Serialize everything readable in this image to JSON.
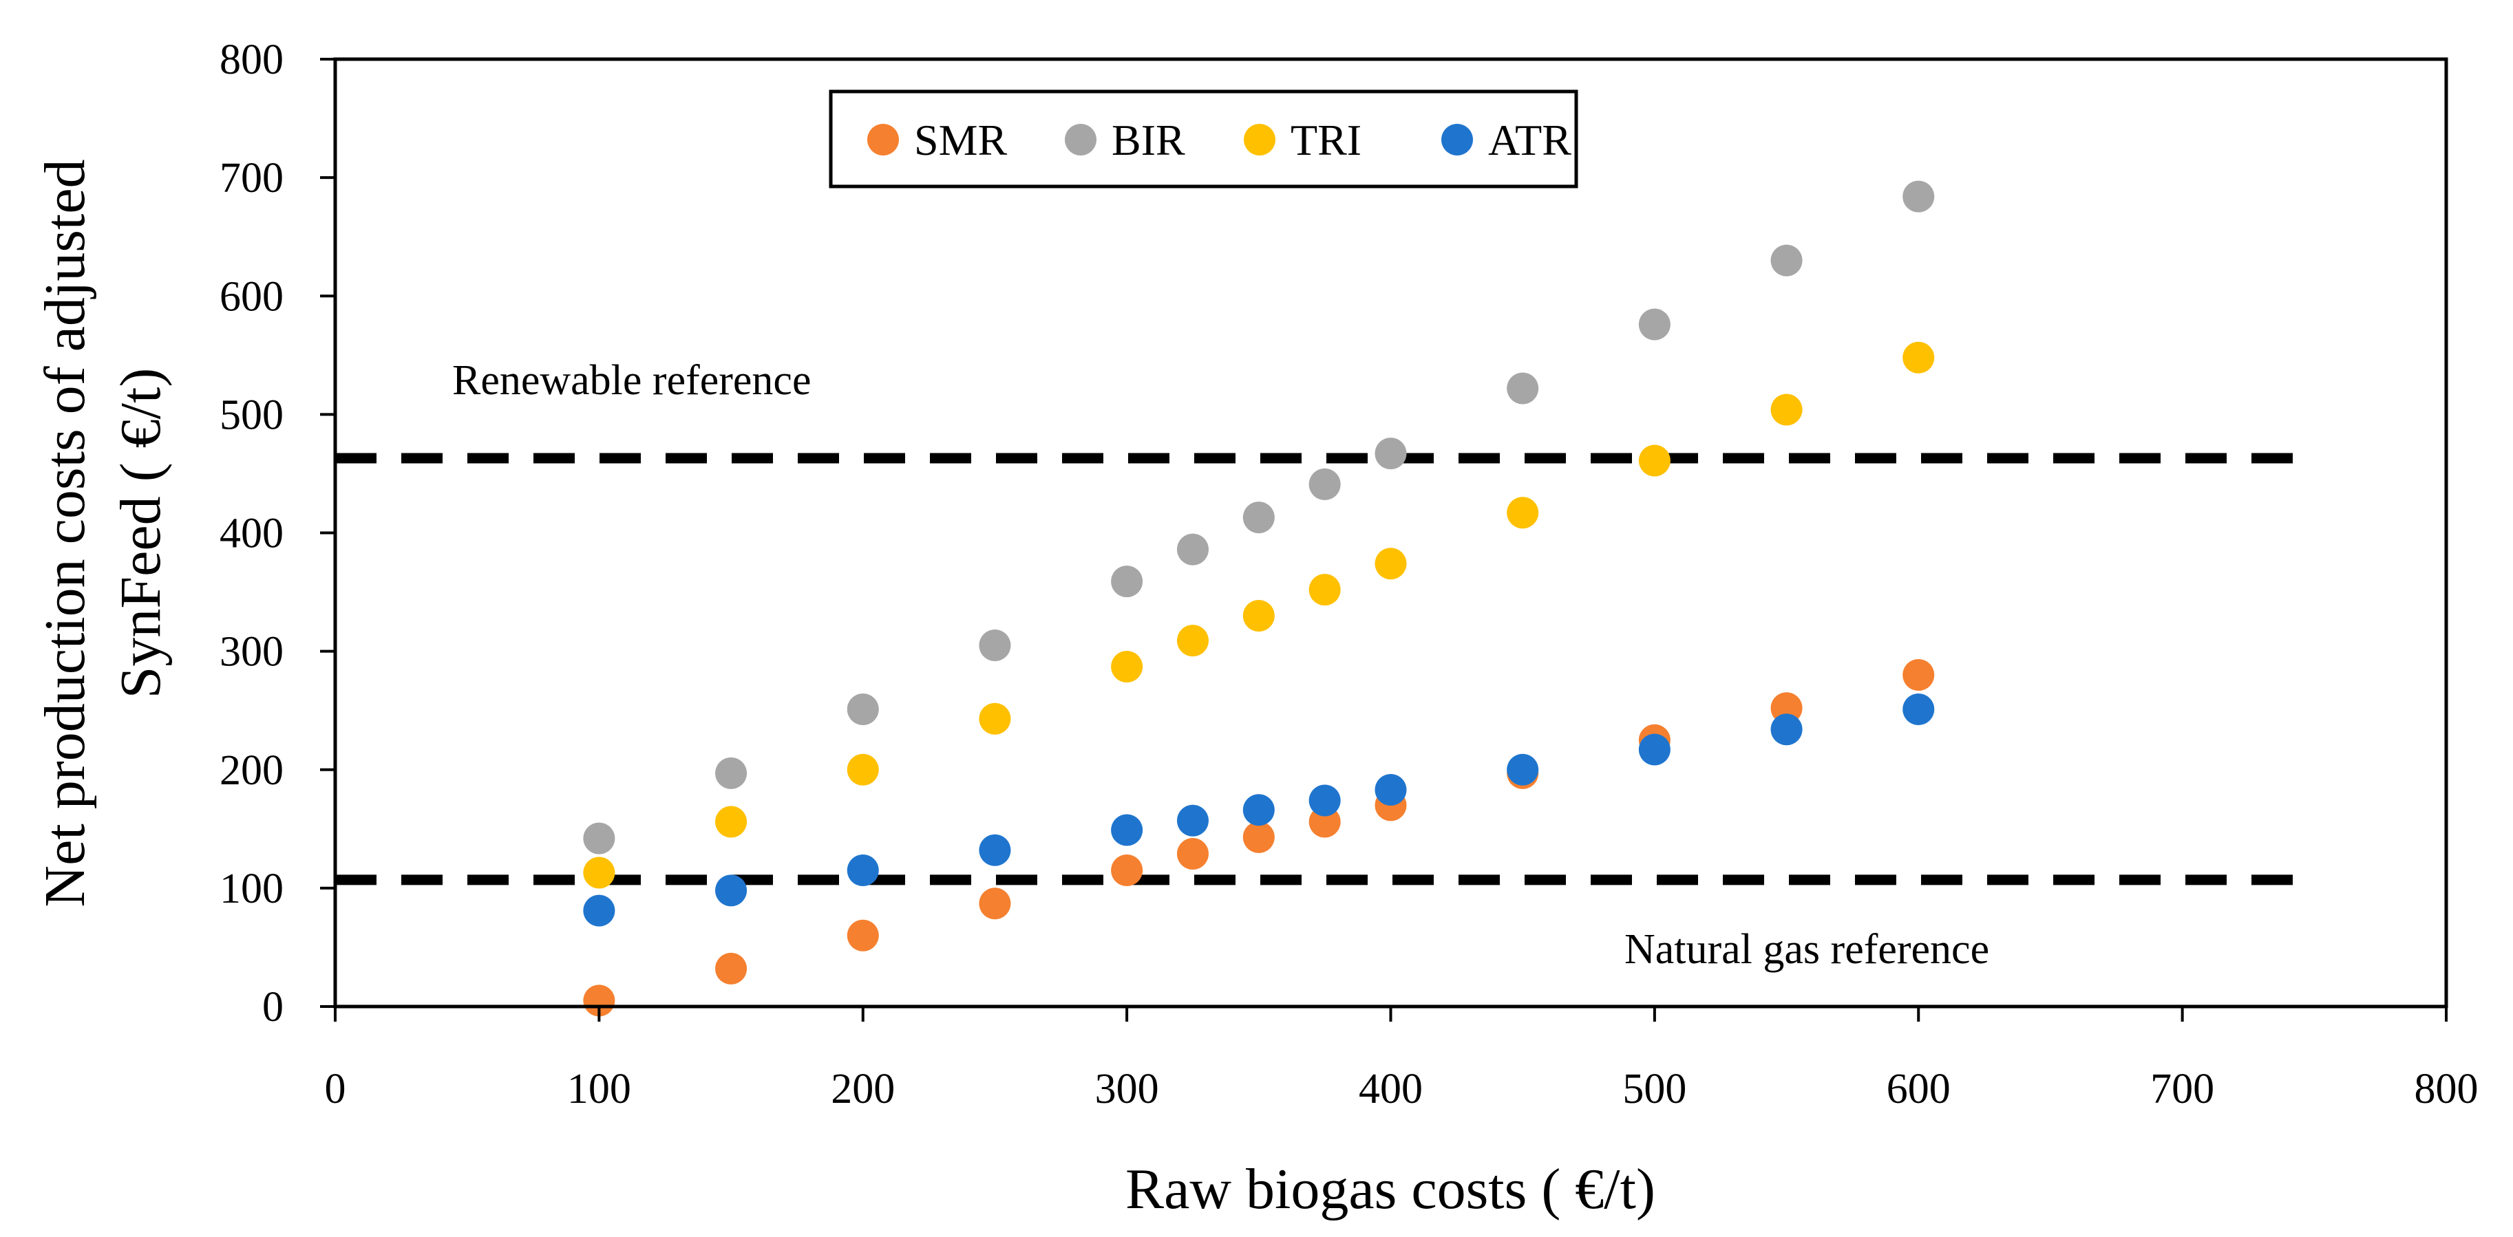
{
  "chart_data": {
    "type": "scatter",
    "title": "",
    "xlabel": "Raw biogas costs ( €/t)",
    "ylabel_lines": [
      "Net production costs of adjusted",
      "SynFeed ( €/t)"
    ],
    "xlim": [
      0,
      800
    ],
    "ylim": [
      0,
      800
    ],
    "x_ticks": [
      0,
      100,
      200,
      300,
      400,
      500,
      600,
      700,
      800
    ],
    "y_ticks": [
      0,
      100,
      200,
      300,
      400,
      500,
      600,
      700,
      800
    ],
    "grid": false,
    "legend_position": "top-left",
    "x": [
      100,
      150,
      200,
      250,
      300,
      325,
      350,
      375,
      400,
      450,
      500,
      550,
      600
    ],
    "series": [
      {
        "name": "SMR",
        "color": "#F5802F",
        "values": [
          5,
          32,
          60,
          87,
          115,
          129,
          143,
          156,
          170,
          197,
          225,
          252,
          280
        ]
      },
      {
        "name": "BIR",
        "color": "#A6A6A6",
        "values": [
          142,
          197,
          251,
          305,
          359,
          386,
          413,
          441,
          467,
          522,
          576,
          630,
          684
        ]
      },
      {
        "name": "TRI",
        "color": "#FFC000",
        "values": [
          113,
          156,
          200,
          243,
          287,
          309,
          330,
          352,
          374,
          417,
          461,
          504,
          548
        ]
      },
      {
        "name": "ATR",
        "color": "#1F75CE",
        "values": [
          81,
          98,
          115,
          132,
          149,
          157,
          166,
          174,
          183,
          200,
          217,
          234,
          251
        ]
      }
    ],
    "reference_lines": [
      {
        "name": "renewable-reference",
        "label": "Renewable reference",
        "y": 463
      },
      {
        "name": "natural-gas-reference",
        "label": "Natural gas reference",
        "y": 107
      }
    ]
  }
}
